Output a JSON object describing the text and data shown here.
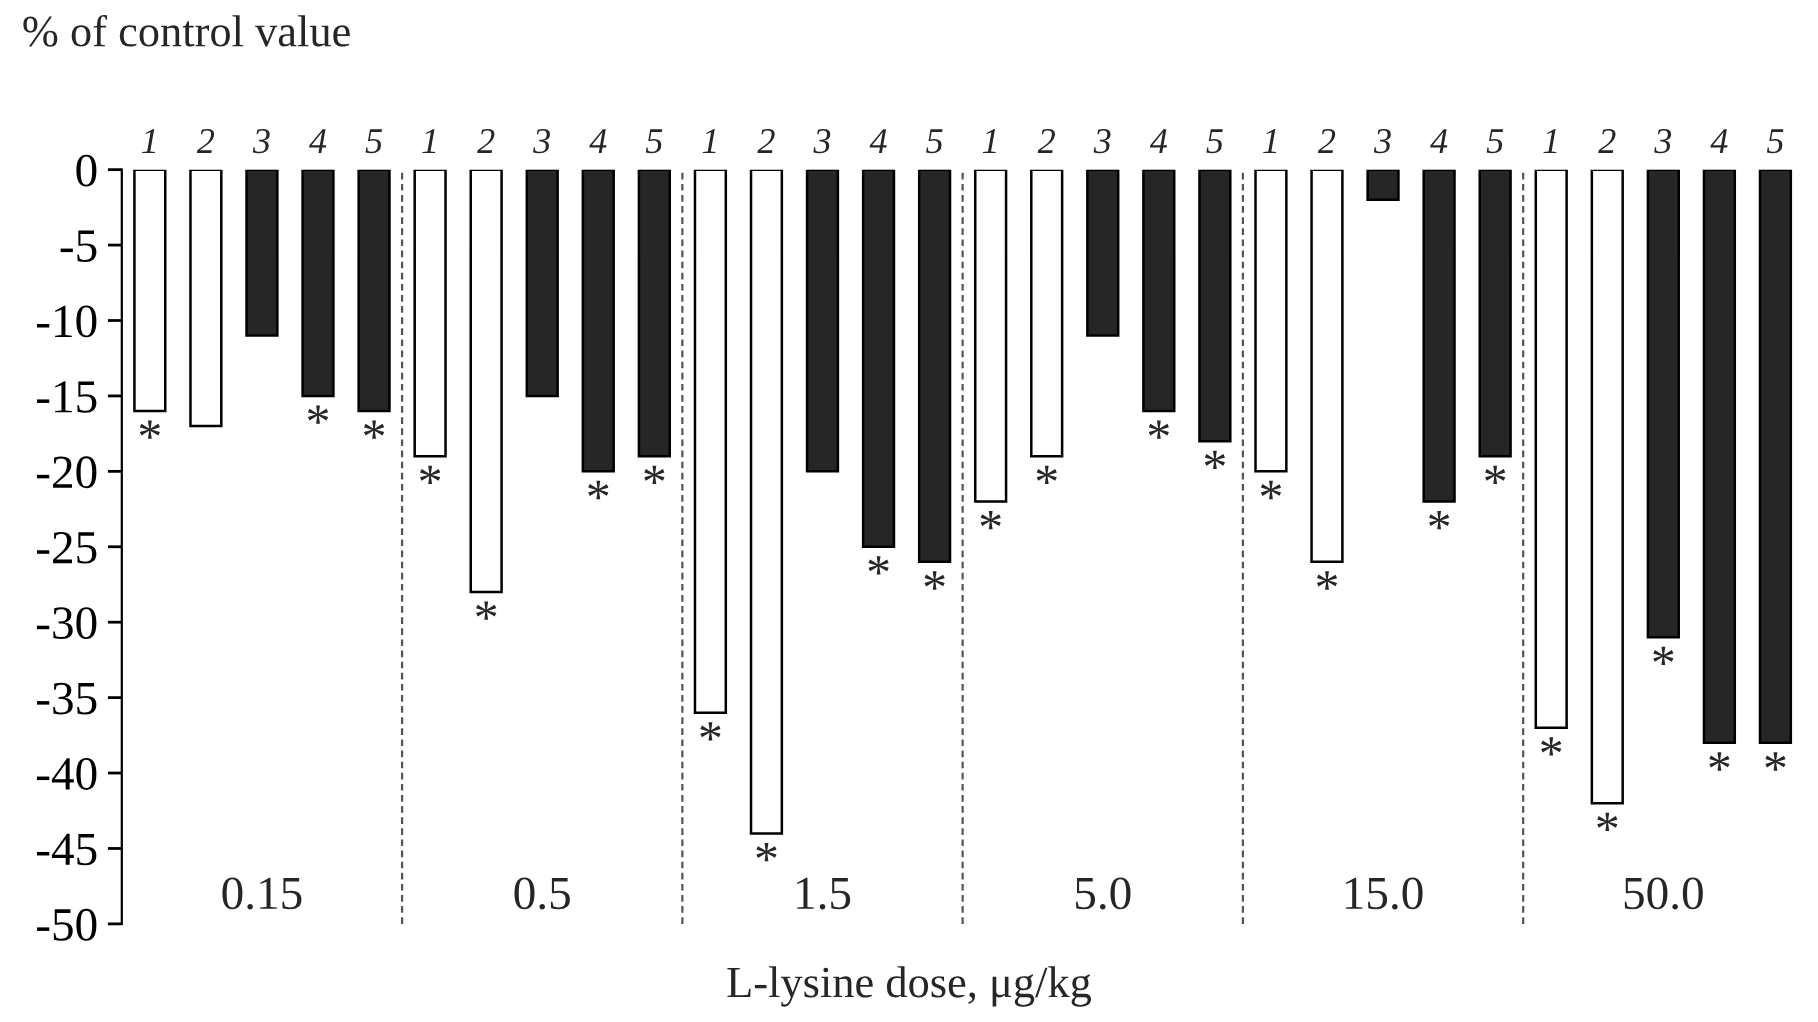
{
  "chart_data": {
    "type": "bar",
    "ylabel": "% of control value",
    "xlabel": "L-lysine dose, μg/kg",
    "categories": [
      "0.15",
      "0.5",
      "1.5",
      "5.0",
      "15.0",
      "50.0"
    ],
    "series": [
      {
        "name": "1",
        "color": "#ffffff",
        "values": [
          -16,
          -19,
          -36,
          -22,
          -20,
          -37
        ],
        "value_labels": [
          "*",
          "*",
          "*",
          "*",
          "*",
          "*"
        ]
      },
      {
        "name": "2",
        "color": "#ffffff",
        "values": [
          -17,
          -28,
          -44,
          -19,
          -26,
          -42
        ],
        "value_labels": [
          null,
          "*",
          "*",
          "*",
          "*",
          "*"
        ]
      },
      {
        "name": "3",
        "color": "#262626",
        "values": [
          -11,
          -15,
          -20,
          -11,
          -2,
          -31
        ],
        "value_labels": [
          null,
          null,
          null,
          null,
          null,
          "*"
        ]
      },
      {
        "name": "4",
        "color": "#262626",
        "values": [
          -15,
          -20,
          -25,
          -16,
          -22,
          -38
        ],
        "value_labels": [
          "*",
          "*",
          "*",
          "*",
          "*",
          "*"
        ]
      },
      {
        "name": "5",
        "color": "#262626",
        "values": [
          -16,
          -19,
          -26,
          -18,
          -19,
          -38
        ],
        "value_labels": [
          "*",
          "*",
          "*",
          "*",
          "*",
          "*"
        ]
      }
    ],
    "ylim": [
      -50,
      0
    ],
    "yticks": [
      -50,
      -45,
      -40,
      -35,
      -30,
      -25,
      -20,
      -15,
      -10,
      -5,
      0
    ],
    "grid": false,
    "legend": false
  }
}
